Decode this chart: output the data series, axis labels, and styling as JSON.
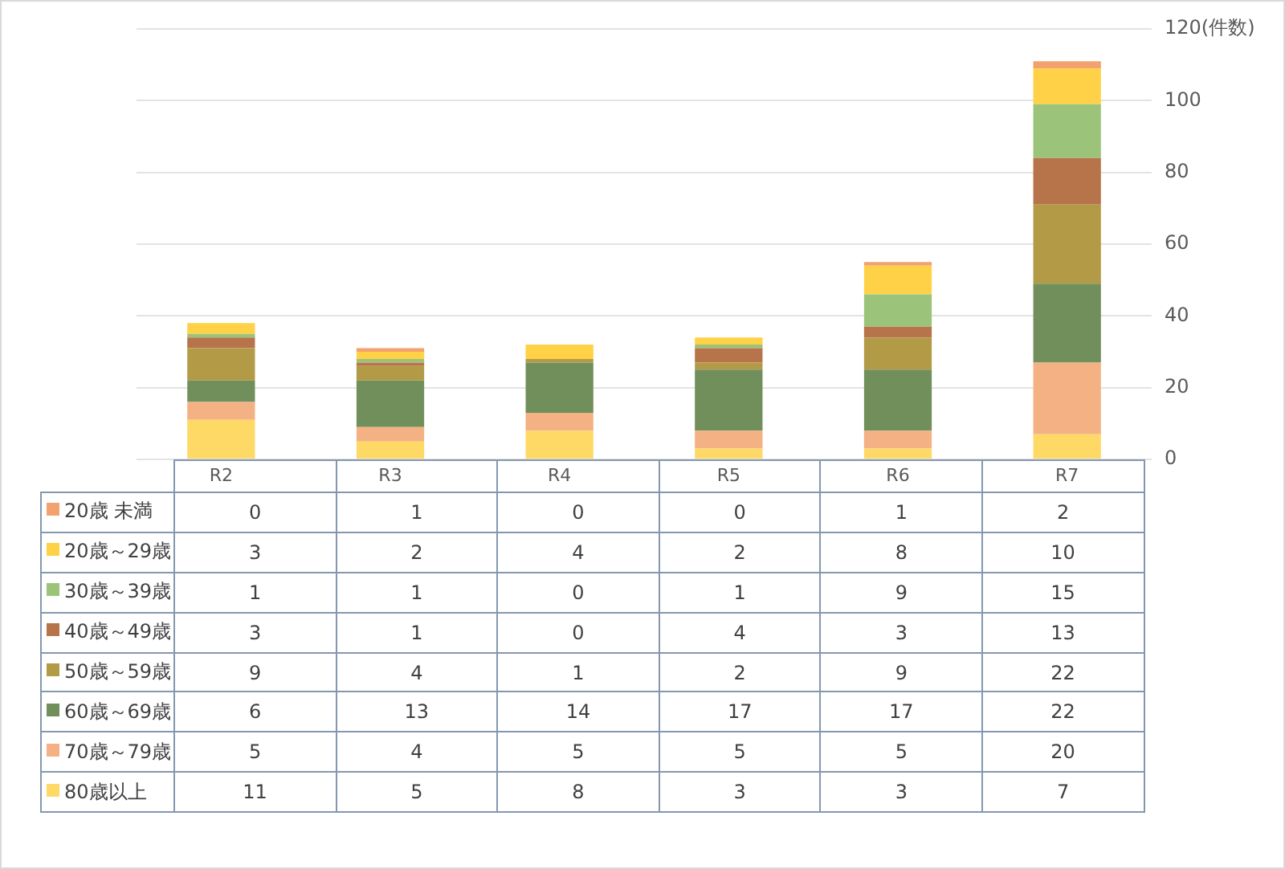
{
  "chart_data": {
    "type": "bar",
    "stacked": true,
    "categories": [
      "R2",
      "R3",
      "R4",
      "R5",
      "R6",
      "R7"
    ],
    "series": [
      {
        "name": "80歳以上",
        "color": "#ffd966",
        "values": [
          11,
          5,
          8,
          3,
          3,
          7
        ]
      },
      {
        "name": "70歳～79歳",
        "color": "#f4b183",
        "values": [
          5,
          4,
          5,
          5,
          5,
          20
        ]
      },
      {
        "name": "60歳～69歳",
        "color": "#718f5a",
        "values": [
          6,
          13,
          14,
          17,
          17,
          22
        ]
      },
      {
        "name": "50歳～59歳",
        "color": "#b39a46",
        "values": [
          9,
          4,
          1,
          2,
          9,
          22
        ]
      },
      {
        "name": "40歳～49歳",
        "color": "#b7744a",
        "values": [
          3,
          1,
          0,
          4,
          3,
          13
        ]
      },
      {
        "name": "30歳～39歳",
        "color": "#9cc37a",
        "values": [
          1,
          1,
          0,
          1,
          9,
          15
        ]
      },
      {
        "name": "20歳～29歳",
        "color": "#ffd147",
        "values": [
          3,
          2,
          4,
          2,
          8,
          10
        ]
      },
      {
        "name": "20歳 未満",
        "color": "#f1a26e",
        "values": [
          0,
          1,
          0,
          0,
          1,
          2
        ]
      }
    ],
    "ylim": [
      0,
      120
    ],
    "yticks": [
      0,
      20,
      40,
      60,
      80,
      100,
      {
        "value": 120,
        "label": "120(件数)"
      }
    ],
    "grid": "y",
    "legend": "bottom",
    "data_labels": true
  }
}
